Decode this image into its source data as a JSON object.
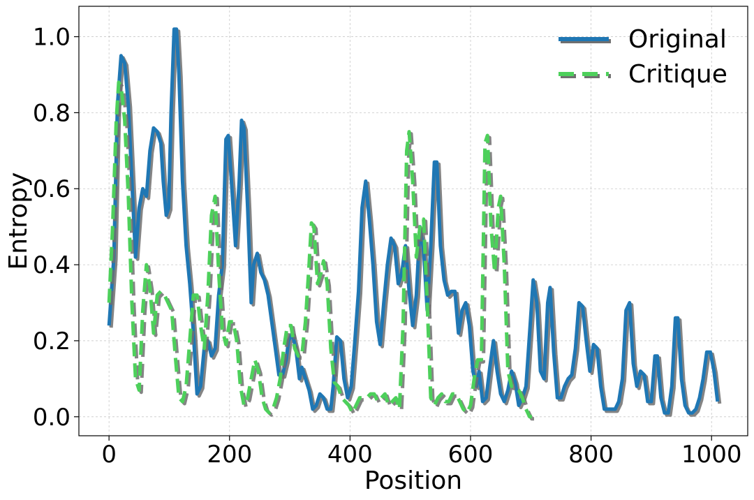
{
  "chart_data": {
    "type": "line",
    "xlabel": "Position",
    "ylabel": "Entropy",
    "xlim": [
      -50,
      1060
    ],
    "ylim": [
      -0.05,
      1.08
    ],
    "xticks": [
      0,
      200,
      400,
      600,
      800,
      1000
    ],
    "yticks": [
      0.0,
      0.2,
      0.4,
      0.6,
      0.8,
      1.0
    ],
    "xtick_labels": [
      "0",
      "200",
      "400",
      "600",
      "800",
      "1000"
    ],
    "ytick_labels": [
      "0.0",
      "0.2",
      "0.4",
      "0.6",
      "0.8",
      "1.0"
    ],
    "grid": true,
    "legend_position": "top-right",
    "series": [
      {
        "name": "Original",
        "color": "#1f77b4",
        "style": "solid",
        "points": [
          [
            0,
            0.24
          ],
          [
            8,
            0.42
          ],
          [
            14,
            0.82
          ],
          [
            20,
            0.95
          ],
          [
            26,
            0.93
          ],
          [
            32,
            0.82
          ],
          [
            38,
            0.62
          ],
          [
            44,
            0.42
          ],
          [
            50,
            0.55
          ],
          [
            56,
            0.6
          ],
          [
            62,
            0.58
          ],
          [
            68,
            0.7
          ],
          [
            74,
            0.76
          ],
          [
            80,
            0.75
          ],
          [
            86,
            0.72
          ],
          [
            90,
            0.62
          ],
          [
            95,
            0.53
          ],
          [
            99,
            0.55
          ],
          [
            103,
            0.8
          ],
          [
            108,
            1.02
          ],
          [
            112,
            1.02
          ],
          [
            116,
            0.9
          ],
          [
            122,
            0.62
          ],
          [
            128,
            0.45
          ],
          [
            134,
            0.35
          ],
          [
            140,
            0.22
          ],
          [
            146,
            0.06
          ],
          [
            152,
            0.08
          ],
          [
            158,
            0.18
          ],
          [
            164,
            0.2
          ],
          [
            170,
            0.16
          ],
          [
            176,
            0.18
          ],
          [
            182,
            0.32
          ],
          [
            188,
            0.4
          ],
          [
            194,
            0.73
          ],
          [
            198,
            0.74
          ],
          [
            204,
            0.6
          ],
          [
            210,
            0.45
          ],
          [
            216,
            0.62
          ],
          [
            220,
            0.78
          ],
          [
            224,
            0.76
          ],
          [
            230,
            0.55
          ],
          [
            236,
            0.3
          ],
          [
            240,
            0.4
          ],
          [
            246,
            0.43
          ],
          [
            252,
            0.38
          ],
          [
            258,
            0.36
          ],
          [
            264,
            0.32
          ],
          [
            270,
            0.25
          ],
          [
            276,
            0.18
          ],
          [
            282,
            0.11
          ],
          [
            288,
            0.11
          ],
          [
            294,
            0.15
          ],
          [
            298,
            0.2
          ],
          [
            304,
            0.22
          ],
          [
            310,
            0.18
          ],
          [
            316,
            0.1
          ],
          [
            320,
            0.13
          ],
          [
            326,
            0.1
          ],
          [
            332,
            0.07
          ],
          [
            338,
            0.02
          ],
          [
            344,
            0.03
          ],
          [
            350,
            0.06
          ],
          [
            356,
            0.05
          ],
          [
            362,
            0.02
          ],
          [
            368,
            0.02
          ],
          [
            372,
            0.08
          ],
          [
            378,
            0.21
          ],
          [
            384,
            0.2
          ],
          [
            390,
            0.1
          ],
          [
            396,
            0.05
          ],
          [
            402,
            0.08
          ],
          [
            408,
            0.2
          ],
          [
            414,
            0.33
          ],
          [
            420,
            0.55
          ],
          [
            426,
            0.62
          ],
          [
            432,
            0.52
          ],
          [
            438,
            0.4
          ],
          [
            444,
            0.25
          ],
          [
            450,
            0.19
          ],
          [
            456,
            0.3
          ],
          [
            462,
            0.4
          ],
          [
            468,
            0.47
          ],
          [
            474,
            0.45
          ],
          [
            480,
            0.35
          ],
          [
            486,
            0.38
          ],
          [
            492,
            0.45
          ],
          [
            498,
            0.33
          ],
          [
            504,
            0.24
          ],
          [
            510,
            0.32
          ],
          [
            516,
            0.5
          ],
          [
            522,
            0.44
          ],
          [
            528,
            0.28
          ],
          [
            534,
            0.45
          ],
          [
            540,
            0.67
          ],
          [
            544,
            0.67
          ],
          [
            550,
            0.45
          ],
          [
            556,
            0.36
          ],
          [
            562,
            0.32
          ],
          [
            568,
            0.33
          ],
          [
            574,
            0.33
          ],
          [
            580,
            0.22
          ],
          [
            586,
            0.28
          ],
          [
            592,
            0.3
          ],
          [
            598,
            0.24
          ],
          [
            604,
            0.12
          ],
          [
            610,
            0.08
          ],
          [
            614,
            0.12
          ],
          [
            620,
            0.04
          ],
          [
            626,
            0.05
          ],
          [
            632,
            0.13
          ],
          [
            638,
            0.2
          ],
          [
            644,
            0.12
          ],
          [
            650,
            0.06
          ],
          [
            656,
            0.04
          ],
          [
            662,
            0.07
          ],
          [
            668,
            0.12
          ],
          [
            674,
            0.09
          ],
          [
            680,
            0.03
          ],
          [
            686,
            0.05
          ],
          [
            692,
            0.08
          ],
          [
            698,
            0.22
          ],
          [
            704,
            0.36
          ],
          [
            710,
            0.3
          ],
          [
            716,
            0.12
          ],
          [
            722,
            0.1
          ],
          [
            728,
            0.3
          ],
          [
            732,
            0.34
          ],
          [
            738,
            0.17
          ],
          [
            744,
            0.05
          ],
          [
            750,
            0.05
          ],
          [
            756,
            0.08
          ],
          [
            762,
            0.1
          ],
          [
            768,
            0.11
          ],
          [
            774,
            0.18
          ],
          [
            780,
            0.3
          ],
          [
            786,
            0.29
          ],
          [
            792,
            0.2
          ],
          [
            798,
            0.12
          ],
          [
            804,
            0.19
          ],
          [
            810,
            0.18
          ],
          [
            816,
            0.08
          ],
          [
            822,
            0.02
          ],
          [
            828,
            0.02
          ],
          [
            834,
            0.02
          ],
          [
            840,
            0.02
          ],
          [
            846,
            0.04
          ],
          [
            852,
            0.1
          ],
          [
            858,
            0.28
          ],
          [
            864,
            0.3
          ],
          [
            870,
            0.14
          ],
          [
            876,
            0.08
          ],
          [
            882,
            0.12
          ],
          [
            888,
            0.11
          ],
          [
            894,
            0.04
          ],
          [
            900,
            0.04
          ],
          [
            906,
            0.16
          ],
          [
            910,
            0.16
          ],
          [
            916,
            0.05
          ],
          [
            922,
            0.01
          ],
          [
            928,
            0.01
          ],
          [
            934,
            0.08
          ],
          [
            940,
            0.26
          ],
          [
            944,
            0.26
          ],
          [
            950,
            0.1
          ],
          [
            956,
            0.03
          ],
          [
            962,
            0.01
          ],
          [
            968,
            0.01
          ],
          [
            974,
            0.02
          ],
          [
            980,
            0.05
          ],
          [
            986,
            0.1
          ],
          [
            992,
            0.17
          ],
          [
            998,
            0.17
          ],
          [
            1004,
            0.12
          ],
          [
            1010,
            0.04
          ]
        ]
      },
      {
        "name": "Critique",
        "color": "#4dd05b",
        "style": "dashed",
        "points": [
          [
            0,
            0.3
          ],
          [
            6,
            0.5
          ],
          [
            12,
            0.78
          ],
          [
            16,
            0.88
          ],
          [
            20,
            0.87
          ],
          [
            26,
            0.78
          ],
          [
            32,
            0.58
          ],
          [
            38,
            0.3
          ],
          [
            44,
            0.1
          ],
          [
            50,
            0.07
          ],
          [
            56,
            0.28
          ],
          [
            62,
            0.4
          ],
          [
            68,
            0.34
          ],
          [
            74,
            0.22
          ],
          [
            80,
            0.32
          ],
          [
            86,
            0.33
          ],
          [
            92,
            0.32
          ],
          [
            98,
            0.3
          ],
          [
            104,
            0.28
          ],
          [
            110,
            0.16
          ],
          [
            116,
            0.05
          ],
          [
            122,
            0.04
          ],
          [
            128,
            0.08
          ],
          [
            134,
            0.2
          ],
          [
            140,
            0.32
          ],
          [
            146,
            0.32
          ],
          [
            152,
            0.24
          ],
          [
            158,
            0.18
          ],
          [
            164,
            0.32
          ],
          [
            170,
            0.53
          ],
          [
            176,
            0.58
          ],
          [
            182,
            0.38
          ],
          [
            188,
            0.23
          ],
          [
            194,
            0.19
          ],
          [
            200,
            0.25
          ],
          [
            206,
            0.25
          ],
          [
            212,
            0.2
          ],
          [
            218,
            0.08
          ],
          [
            224,
            0.03
          ],
          [
            230,
            0.05
          ],
          [
            236,
            0.1
          ],
          [
            242,
            0.15
          ],
          [
            248,
            0.12
          ],
          [
            254,
            0.05
          ],
          [
            260,
            0.02
          ],
          [
            266,
            0.01
          ],
          [
            272,
            0.02
          ],
          [
            278,
            0.05
          ],
          [
            284,
            0.1
          ],
          [
            290,
            0.18
          ],
          [
            296,
            0.24
          ],
          [
            302,
            0.24
          ],
          [
            308,
            0.18
          ],
          [
            314,
            0.16
          ],
          [
            320,
            0.16
          ],
          [
            326,
            0.25
          ],
          [
            332,
            0.4
          ],
          [
            336,
            0.51
          ],
          [
            340,
            0.5
          ],
          [
            346,
            0.35
          ],
          [
            352,
            0.38
          ],
          [
            356,
            0.41
          ],
          [
            362,
            0.35
          ],
          [
            368,
            0.18
          ],
          [
            374,
            0.09
          ],
          [
            380,
            0.08
          ],
          [
            386,
            0.05
          ],
          [
            392,
            0.04
          ],
          [
            398,
            0.03
          ],
          [
            404,
            0.01
          ],
          [
            410,
            0.03
          ],
          [
            416,
            0.05
          ],
          [
            422,
            0.05
          ],
          [
            428,
            0.05
          ],
          [
            434,
            0.06
          ],
          [
            440,
            0.06
          ],
          [
            446,
            0.04
          ],
          [
            452,
            0.05
          ],
          [
            458,
            0.06
          ],
          [
            464,
            0.03
          ],
          [
            470,
            0.04
          ],
          [
            476,
            0.05
          ],
          [
            482,
            0.02
          ],
          [
            488,
            0.24
          ],
          [
            494,
            0.7
          ],
          [
            498,
            0.75
          ],
          [
            504,
            0.62
          ],
          [
            510,
            0.42
          ],
          [
            516,
            0.5
          ],
          [
            522,
            0.52
          ],
          [
            528,
            0.3
          ],
          [
            534,
            0.05
          ],
          [
            540,
            0.03
          ],
          [
            546,
            0.05
          ],
          [
            552,
            0.06
          ],
          [
            558,
            0.04
          ],
          [
            564,
            0.04
          ],
          [
            570,
            0.06
          ],
          [
            576,
            0.06
          ],
          [
            582,
            0.04
          ],
          [
            588,
            0.02
          ],
          [
            594,
            0.01
          ],
          [
            600,
            0.03
          ],
          [
            606,
            0.1
          ],
          [
            612,
            0.15
          ],
          [
            618,
            0.15
          ],
          [
            624,
            0.72
          ],
          [
            628,
            0.74
          ],
          [
            634,
            0.5
          ],
          [
            640,
            0.38
          ],
          [
            646,
            0.55
          ],
          [
            650,
            0.58
          ],
          [
            656,
            0.4
          ],
          [
            662,
            0.12
          ],
          [
            668,
            0.08
          ],
          [
            674,
            0.08
          ],
          [
            680,
            0.07
          ],
          [
            686,
            0.05
          ],
          [
            692,
            0.02
          ],
          [
            698,
            0.0
          ],
          [
            702,
            0.0
          ]
        ]
      }
    ]
  }
}
